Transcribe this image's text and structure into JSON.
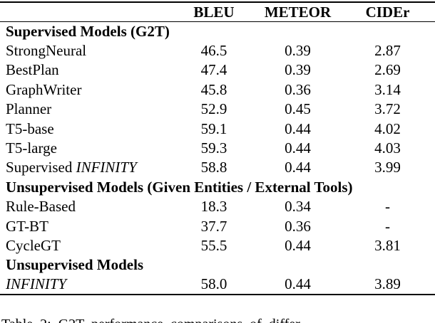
{
  "colors": {
    "text": "#000000",
    "background": "#ffffff",
    "rule": "#000000"
  },
  "table": {
    "columns": [
      "",
      "BLEU",
      "METEOR",
      "CIDEr"
    ],
    "sections": [
      {
        "header": "Supervised Models (G2T)",
        "rows": [
          {
            "name": "StrongNeural",
            "name_italic": "",
            "bleu": "46.5",
            "meteor": "0.39",
            "cider": "2.87"
          },
          {
            "name": "BestPlan",
            "name_italic": "",
            "bleu": "47.4",
            "meteor": "0.39",
            "cider": "2.69"
          },
          {
            "name": "GraphWriter",
            "name_italic": "",
            "bleu": "45.8",
            "meteor": "0.36",
            "cider": "3.14"
          },
          {
            "name": "Planner",
            "name_italic": "",
            "bleu": "52.9",
            "meteor": "0.45",
            "cider": "3.72"
          },
          {
            "name": "T5-base",
            "name_italic": "",
            "bleu": "59.1",
            "meteor": "0.44",
            "cider": "4.02"
          },
          {
            "name": "T5-large",
            "name_italic": "",
            "bleu": "59.3",
            "meteor": "0.44",
            "cider": "4.03"
          },
          {
            "name": "Supervised ",
            "name_italic": "INFINITY",
            "bleu": "58.8",
            "meteor": "0.44",
            "cider": "3.99"
          }
        ]
      },
      {
        "header": "Unsupervised Models (Given Entities / External Tools)",
        "rows": [
          {
            "name": "Rule-Based",
            "name_italic": "",
            "bleu": "18.3",
            "meteor": "0.34",
            "cider": "-"
          },
          {
            "name": "GT-BT",
            "name_italic": "",
            "bleu": "37.7",
            "meteor": "0.36",
            "cider": "-"
          },
          {
            "name": "CycleGT",
            "name_italic": "",
            "bleu": "55.5",
            "meteor": "0.44",
            "cider": "3.81"
          }
        ]
      },
      {
        "header": "Unsupervised Models",
        "rows": [
          {
            "name": "",
            "name_italic": "INFINITY",
            "bleu": "58.0",
            "meteor": "0.44",
            "cider": "3.89"
          }
        ]
      }
    ]
  },
  "caption": "Table 2: G2T performance comparisons of differ-"
}
